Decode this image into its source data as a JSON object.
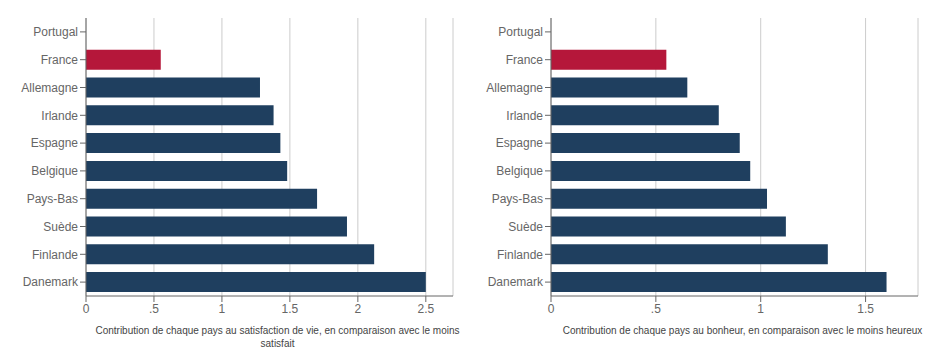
{
  "chart_data": [
    {
      "type": "bar",
      "orientation": "horizontal",
      "categories": [
        "Danemark",
        "Finlande",
        "Suède",
        "Pays-Bas",
        "Belgique",
        "Espagne",
        "Irlande",
        "Allemagne",
        "France",
        "Portugal"
      ],
      "values": [
        2.5,
        2.12,
        1.92,
        1.7,
        1.48,
        1.43,
        1.38,
        1.28,
        0.55,
        0.0
      ],
      "colors": [
        "#1f3f5f",
        "#1f3f5f",
        "#1f3f5f",
        "#1f3f5f",
        "#1f3f5f",
        "#1f3f5f",
        "#1f3f5f",
        "#1f3f5f",
        "#b5173a",
        "#1f3f5f"
      ],
      "xlabel": "Contribution de chaque pays au satisfaction de vie, en comparaison avec le moins satisfait",
      "xlim": [
        0,
        2.7
      ],
      "xticks": [
        0,
        {
          "value": 0.5,
          "label": ".5"
        },
        1,
        1.5,
        2,
        2.5
      ],
      "grid": true
    },
    {
      "type": "bar",
      "orientation": "horizontal",
      "categories": [
        "Danemark",
        "Finlande",
        "Suède",
        "Pays-Bas",
        "Belgique",
        "Espagne",
        "Irlande",
        "Allemagne",
        "France",
        "Portugal"
      ],
      "values": [
        1.6,
        1.32,
        1.12,
        1.03,
        0.95,
        0.9,
        0.8,
        0.65,
        0.55,
        0.0
      ],
      "colors": [
        "#1f3f5f",
        "#1f3f5f",
        "#1f3f5f",
        "#1f3f5f",
        "#1f3f5f",
        "#1f3f5f",
        "#1f3f5f",
        "#1f3f5f",
        "#b5173a",
        "#1f3f5f"
      ],
      "xlabel": "Contribution de chaque pays au bonheur, en comparaison avec le moins heureux",
      "xlim": [
        0,
        1.75
      ],
      "xticks": [
        0,
        {
          "value": 0.5,
          "label": ".5"
        },
        1,
        1.5
      ],
      "grid": true
    }
  ]
}
